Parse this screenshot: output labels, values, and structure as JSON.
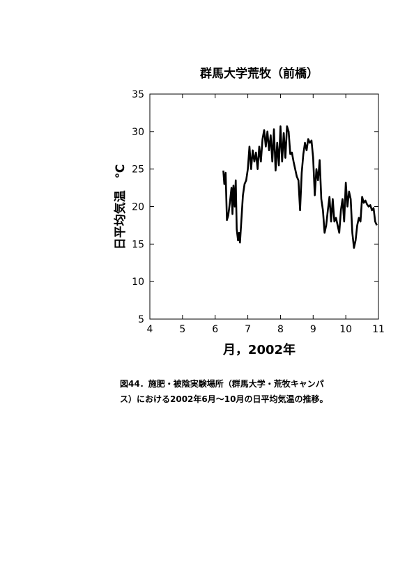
{
  "chart_data": {
    "type": "line",
    "title": "群馬大学荒牧（前橋）",
    "x_label": "月，2002年",
    "y_label": "日平均気温　℃",
    "caption": [
      "図44．施肥・被陰実験場所（群馬大学・荒牧キャンパ",
      "ス）における2002年6月～10月の日平均気温の推移。"
    ],
    "xlim": [
      4,
      11
    ],
    "xticks": [
      4,
      5,
      6,
      7,
      8,
      9,
      10,
      11
    ],
    "ylim": [
      5,
      35
    ],
    "yticks": [
      5,
      10,
      15,
      20,
      25,
      30,
      35
    ],
    "color": "#000000",
    "x": [
      6.25,
      6.28,
      6.32,
      6.36,
      6.4,
      6.45,
      6.5,
      6.53,
      6.56,
      6.6,
      6.63,
      6.66,
      6.7,
      6.73,
      6.76,
      6.8,
      6.85,
      6.9,
      6.95,
      7.0,
      7.05,
      7.1,
      7.15,
      7.2,
      7.25,
      7.3,
      7.35,
      7.4,
      7.45,
      7.5,
      7.55,
      7.6,
      7.65,
      7.7,
      7.75,
      7.8,
      7.85,
      7.9,
      7.95,
      8.0,
      8.05,
      8.1,
      8.15,
      8.2,
      8.25,
      8.3,
      8.35,
      8.4,
      8.45,
      8.5,
      8.55,
      8.6,
      8.65,
      8.7,
      8.75,
      8.8,
      8.85,
      8.9,
      8.95,
      9.0,
      9.05,
      9.1,
      9.15,
      9.2,
      9.25,
      9.3,
      9.35,
      9.4,
      9.45,
      9.5,
      9.55,
      9.6,
      9.65,
      9.7,
      9.75,
      9.8,
      9.85,
      9.9,
      9.95,
      10.0,
      10.05,
      10.1,
      10.15,
      10.2,
      10.25,
      10.3,
      10.35,
      10.4,
      10.45,
      10.5,
      10.55,
      10.6,
      10.65,
      10.7,
      10.75,
      10.8,
      10.85,
      10.9,
      10.95
    ],
    "values": [
      24.8,
      23,
      24.5,
      18.2,
      18.8,
      20.5,
      22.5,
      19,
      22.8,
      20,
      23.5,
      17,
      15.5,
      16.5,
      15.2,
      18,
      21.5,
      23,
      23.5,
      25,
      28,
      25,
      27.5,
      26,
      27.2,
      25,
      28,
      26,
      29,
      30.2,
      28,
      30,
      27.5,
      29.5,
      26,
      30.3,
      24.8,
      28.5,
      25.5,
      30.7,
      26,
      29.8,
      26.5,
      30.7,
      30,
      27,
      27.2,
      26,
      25,
      24,
      23.5,
      19.5,
      24.5,
      27,
      28.5,
      27.5,
      29,
      28.5,
      28.8,
      26.5,
      21.5,
      25,
      23.5,
      26.2,
      21,
      19.5,
      16.5,
      17.5,
      19.5,
      21.3,
      18,
      21,
      18,
      18.5,
      17.5,
      16.5,
      19.5,
      21,
      18,
      23.2,
      20,
      22,
      21,
      16.5,
      14.5,
      15.5,
      17.5,
      18.5,
      18,
      21.3,
      20.5,
      20.8,
      20.3,
      20,
      20.2,
      19.5,
      19.8,
      18,
      17.5
    ]
  }
}
